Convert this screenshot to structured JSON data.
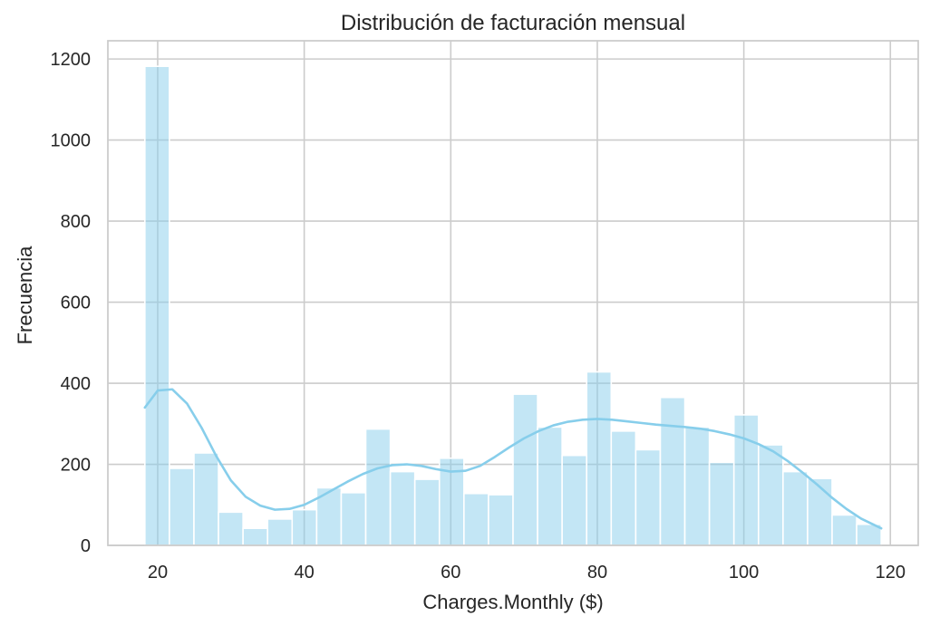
{
  "chart_data": {
    "type": "bar",
    "title": "Distribución de facturación mensual",
    "xlabel": "Charges.Monthly ($)",
    "ylabel": "Frecuencia",
    "xlim": [
      13.2,
      123.8
    ],
    "ylim": [
      0,
      1245
    ],
    "xticks": [
      20,
      40,
      60,
      80,
      100,
      120
    ],
    "yticks": [
      0,
      200,
      400,
      600,
      800,
      1000,
      1200
    ],
    "grid": true,
    "colors": {
      "bar_fill": "#87ceeb",
      "bar_edge": "#ffffff",
      "kde_line": "#87ceeb",
      "grid": "#cccccc",
      "spine": "#cccccc",
      "text": "#262626"
    },
    "bin_edges": [
      18.25,
      21.6,
      24.95,
      28.3,
      31.65,
      35.0,
      38.35,
      41.7,
      45.05,
      48.4,
      51.75,
      55.1,
      58.45,
      61.8,
      65.15,
      68.5,
      71.85,
      75.2,
      78.55,
      81.9,
      85.25,
      88.6,
      91.95,
      95.3,
      98.65,
      102.0,
      105.35,
      108.7,
      112.05,
      115.4,
      118.75
    ],
    "values": [
      1182,
      190,
      228,
      82,
      42,
      65,
      88,
      142,
      130,
      287,
      182,
      163,
      215,
      128,
      125,
      373,
      292,
      222,
      428,
      282,
      236,
      365,
      292,
      205,
      322,
      248,
      182,
      165,
      75,
      52
    ],
    "kde": {
      "x": [
        18.25,
        20,
        22,
        24,
        26,
        28,
        30,
        32,
        34,
        36,
        38,
        40,
        42,
        44,
        46,
        48,
        50,
        52,
        54,
        56,
        58,
        60,
        62,
        64,
        66,
        68,
        70,
        72,
        74,
        76,
        78,
        80,
        82,
        84,
        86,
        88,
        90,
        92,
        94,
        96,
        98,
        100,
        102,
        104,
        106,
        108,
        110,
        112,
        114,
        116,
        118.75
      ],
      "y": [
        340,
        382,
        385,
        350,
        290,
        220,
        160,
        120,
        98,
        88,
        90,
        100,
        118,
        138,
        158,
        176,
        190,
        198,
        200,
        196,
        188,
        182,
        184,
        196,
        218,
        242,
        264,
        282,
        296,
        305,
        310,
        312,
        310,
        306,
        302,
        298,
        295,
        292,
        288,
        282,
        274,
        264,
        250,
        232,
        208,
        180,
        150,
        118,
        90,
        66,
        42
      ]
    }
  }
}
